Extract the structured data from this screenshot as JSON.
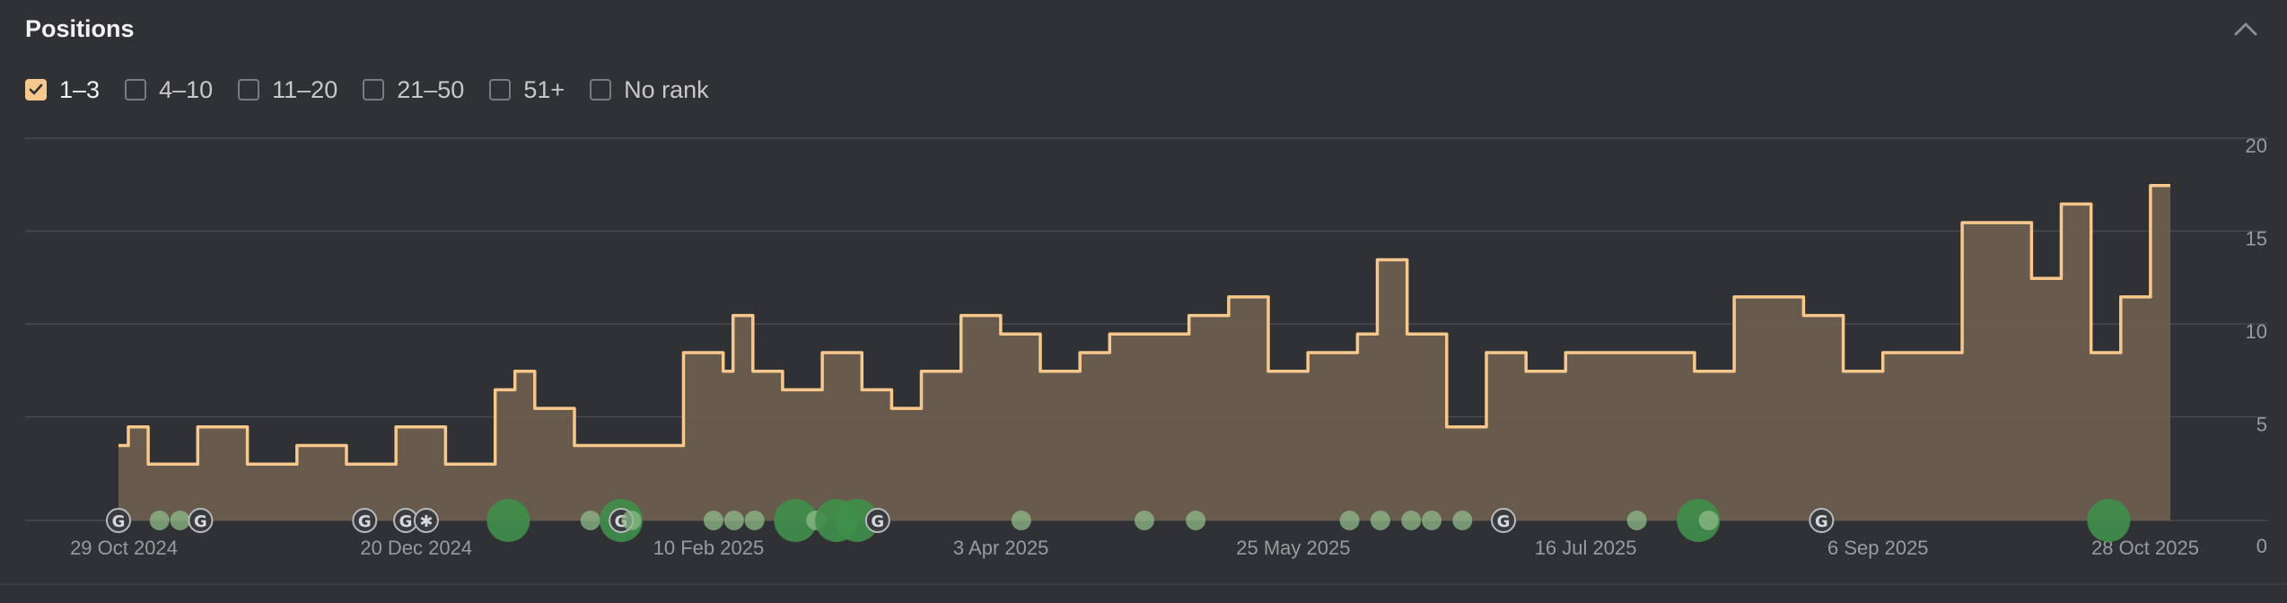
{
  "header": {
    "title": "Positions",
    "collapse_icon": "chevron-up-icon"
  },
  "filters": [
    {
      "label": "1–3",
      "checked": true
    },
    {
      "label": "4–10",
      "checked": false
    },
    {
      "label": "11–20",
      "checked": false
    },
    {
      "label": "21–50",
      "checked": false
    },
    {
      "label": "51+",
      "checked": false
    },
    {
      "label": "No rank",
      "checked": false
    }
  ],
  "colors": {
    "line": "#f7c88d",
    "area": "#6b5e4f",
    "grid": "#4a4b4e",
    "event_large": "#3f8f4a",
    "event_small": "#8fb98a",
    "checkbox_checked": "#f7c88d"
  },
  "chart_data": {
    "type": "area",
    "ylim": [
      0,
      20
    ],
    "y_ticks": [
      "20",
      "15",
      "10",
      "5",
      "0"
    ],
    "x_tick_labels": [
      "29 Oct 2024",
      "20 Dec 2024",
      "10 Feb 2025",
      "3 Apr 2025",
      "25 May 2025",
      "16 Jul 2025",
      "6 Sep 2025",
      "28 Oct 2025"
    ],
    "grid": true,
    "series": [
      {
        "values": [
          5,
          6,
          6,
          4,
          4,
          4,
          4,
          4,
          6,
          6,
          6,
          6,
          6,
          4,
          4,
          4,
          4,
          4,
          5,
          5,
          5,
          5,
          5,
          4,
          4,
          4,
          4,
          4,
          6,
          6,
          6,
          6,
          6,
          4,
          4,
          4,
          4,
          4,
          8,
          8,
          9,
          9,
          7,
          7,
          7,
          7,
          5,
          5,
          5,
          5,
          5,
          5,
          5,
          5,
          5,
          5,
          5,
          10,
          10,
          10,
          10,
          9,
          12,
          12,
          9,
          9,
          9,
          8,
          8,
          8,
          8,
          10,
          10,
          10,
          10,
          8,
          8,
          8,
          7,
          7,
          7,
          9,
          9,
          9,
          9,
          12,
          12,
          12,
          12,
          11,
          11,
          11,
          11,
          9,
          9,
          9,
          9,
          10,
          10,
          10,
          11,
          11,
          11,
          11,
          11,
          11,
          11,
          11,
          12,
          12,
          12,
          12,
          13,
          13,
          13,
          13,
          9,
          9,
          9,
          9,
          10,
          10,
          10,
          10,
          10,
          11,
          11,
          15,
          15,
          15,
          11,
          11,
          11,
          11,
          6,
          6,
          6,
          6,
          10,
          10,
          10,
          10,
          9,
          9,
          9,
          9,
          10,
          10,
          10,
          10,
          10,
          10,
          10,
          10,
          10,
          10,
          10,
          10,
          10,
          9,
          9,
          9,
          9,
          13,
          13,
          13,
          13,
          13,
          13,
          13,
          12,
          12,
          12,
          12,
          9,
          9,
          9,
          9,
          10,
          10,
          10,
          10,
          10,
          10,
          10,
          10,
          17,
          17,
          17,
          17,
          17,
          17,
          17,
          14,
          14,
          14,
          18,
          18,
          18,
          10,
          10,
          10,
          13,
          13,
          13,
          19,
          19
        ]
      }
    ],
    "events": [
      {
        "x": 0.0,
        "size": "small",
        "icon": "google"
      },
      {
        "x": 0.02,
        "size": "small",
        "icon": "none"
      },
      {
        "x": 0.03,
        "size": "small",
        "icon": "none"
      },
      {
        "x": 0.04,
        "size": "small",
        "icon": "google"
      },
      {
        "x": 0.12,
        "size": "small",
        "icon": "google"
      },
      {
        "x": 0.14,
        "size": "small",
        "icon": "google"
      },
      {
        "x": 0.15,
        "size": "small",
        "icon": "gear"
      },
      {
        "x": 0.19,
        "size": "large",
        "icon": "none"
      },
      {
        "x": 0.23,
        "size": "small",
        "icon": "none"
      },
      {
        "x": 0.245,
        "size": "large",
        "icon": "google"
      },
      {
        "x": 0.25,
        "size": "small",
        "icon": "none"
      },
      {
        "x": 0.29,
        "size": "small",
        "icon": "none"
      },
      {
        "x": 0.3,
        "size": "small",
        "icon": "none"
      },
      {
        "x": 0.31,
        "size": "small",
        "icon": "none"
      },
      {
        "x": 0.33,
        "size": "large",
        "icon": "none"
      },
      {
        "x": 0.34,
        "size": "small",
        "icon": "none"
      },
      {
        "x": 0.35,
        "size": "large",
        "icon": "none"
      },
      {
        "x": 0.36,
        "size": "large",
        "icon": "none"
      },
      {
        "x": 0.37,
        "size": "small",
        "icon": "google"
      },
      {
        "x": 0.44,
        "size": "small",
        "icon": "none"
      },
      {
        "x": 0.5,
        "size": "small",
        "icon": "none"
      },
      {
        "x": 0.525,
        "size": "small",
        "icon": "none"
      },
      {
        "x": 0.6,
        "size": "small",
        "icon": "none"
      },
      {
        "x": 0.615,
        "size": "small",
        "icon": "none"
      },
      {
        "x": 0.63,
        "size": "small",
        "icon": "none"
      },
      {
        "x": 0.64,
        "size": "small",
        "icon": "none"
      },
      {
        "x": 0.655,
        "size": "small",
        "icon": "none"
      },
      {
        "x": 0.675,
        "size": "small",
        "icon": "google"
      },
      {
        "x": 0.74,
        "size": "small",
        "icon": "none"
      },
      {
        "x": 0.77,
        "size": "large",
        "icon": "none"
      },
      {
        "x": 0.775,
        "size": "small",
        "icon": "none"
      },
      {
        "x": 0.83,
        "size": "small",
        "icon": "google"
      },
      {
        "x": 0.97,
        "size": "large",
        "icon": "none"
      }
    ]
  }
}
